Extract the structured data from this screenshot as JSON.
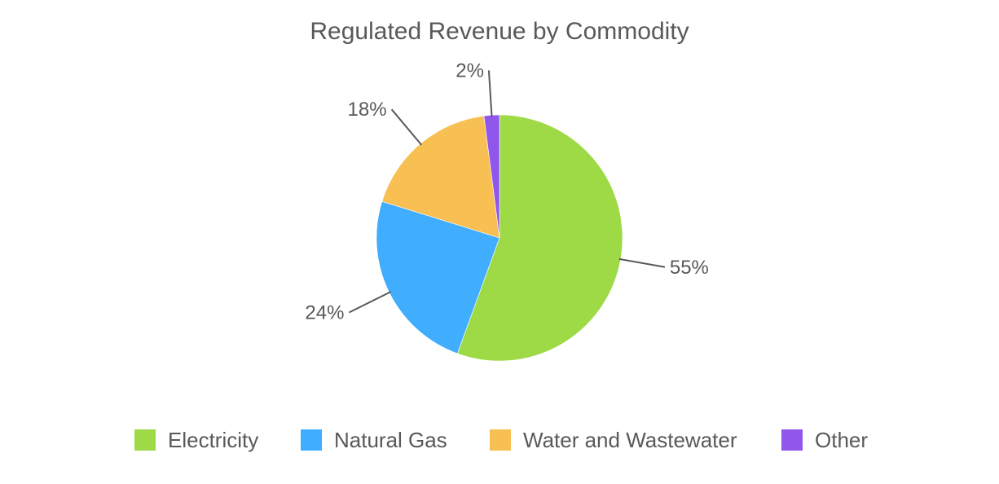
{
  "chart_data": {
    "type": "pie",
    "title": "Regulated Revenue by Commodity",
    "categories": [
      "Electricity",
      "Natural Gas",
      "Water and Wastewater",
      "Other"
    ],
    "values": [
      55,
      24,
      18,
      2
    ],
    "labels": [
      "55%",
      "24%",
      "18%",
      "2%"
    ],
    "colors": [
      "#9ed946",
      "#40adff",
      "#f8bf52",
      "#8f57ec"
    ],
    "start_angle": "top (12 o'clock), clockwise",
    "legend_position": "bottom"
  },
  "title": "Regulated Revenue by Commodity",
  "legend": [
    {
      "label": "Electricity",
      "color": "#9ed946"
    },
    {
      "label": "Natural Gas",
      "color": "#40adff"
    },
    {
      "label": "Water and Wastewater",
      "color": "#f8bf52"
    },
    {
      "label": "Other",
      "color": "#8f57ec"
    }
  ]
}
